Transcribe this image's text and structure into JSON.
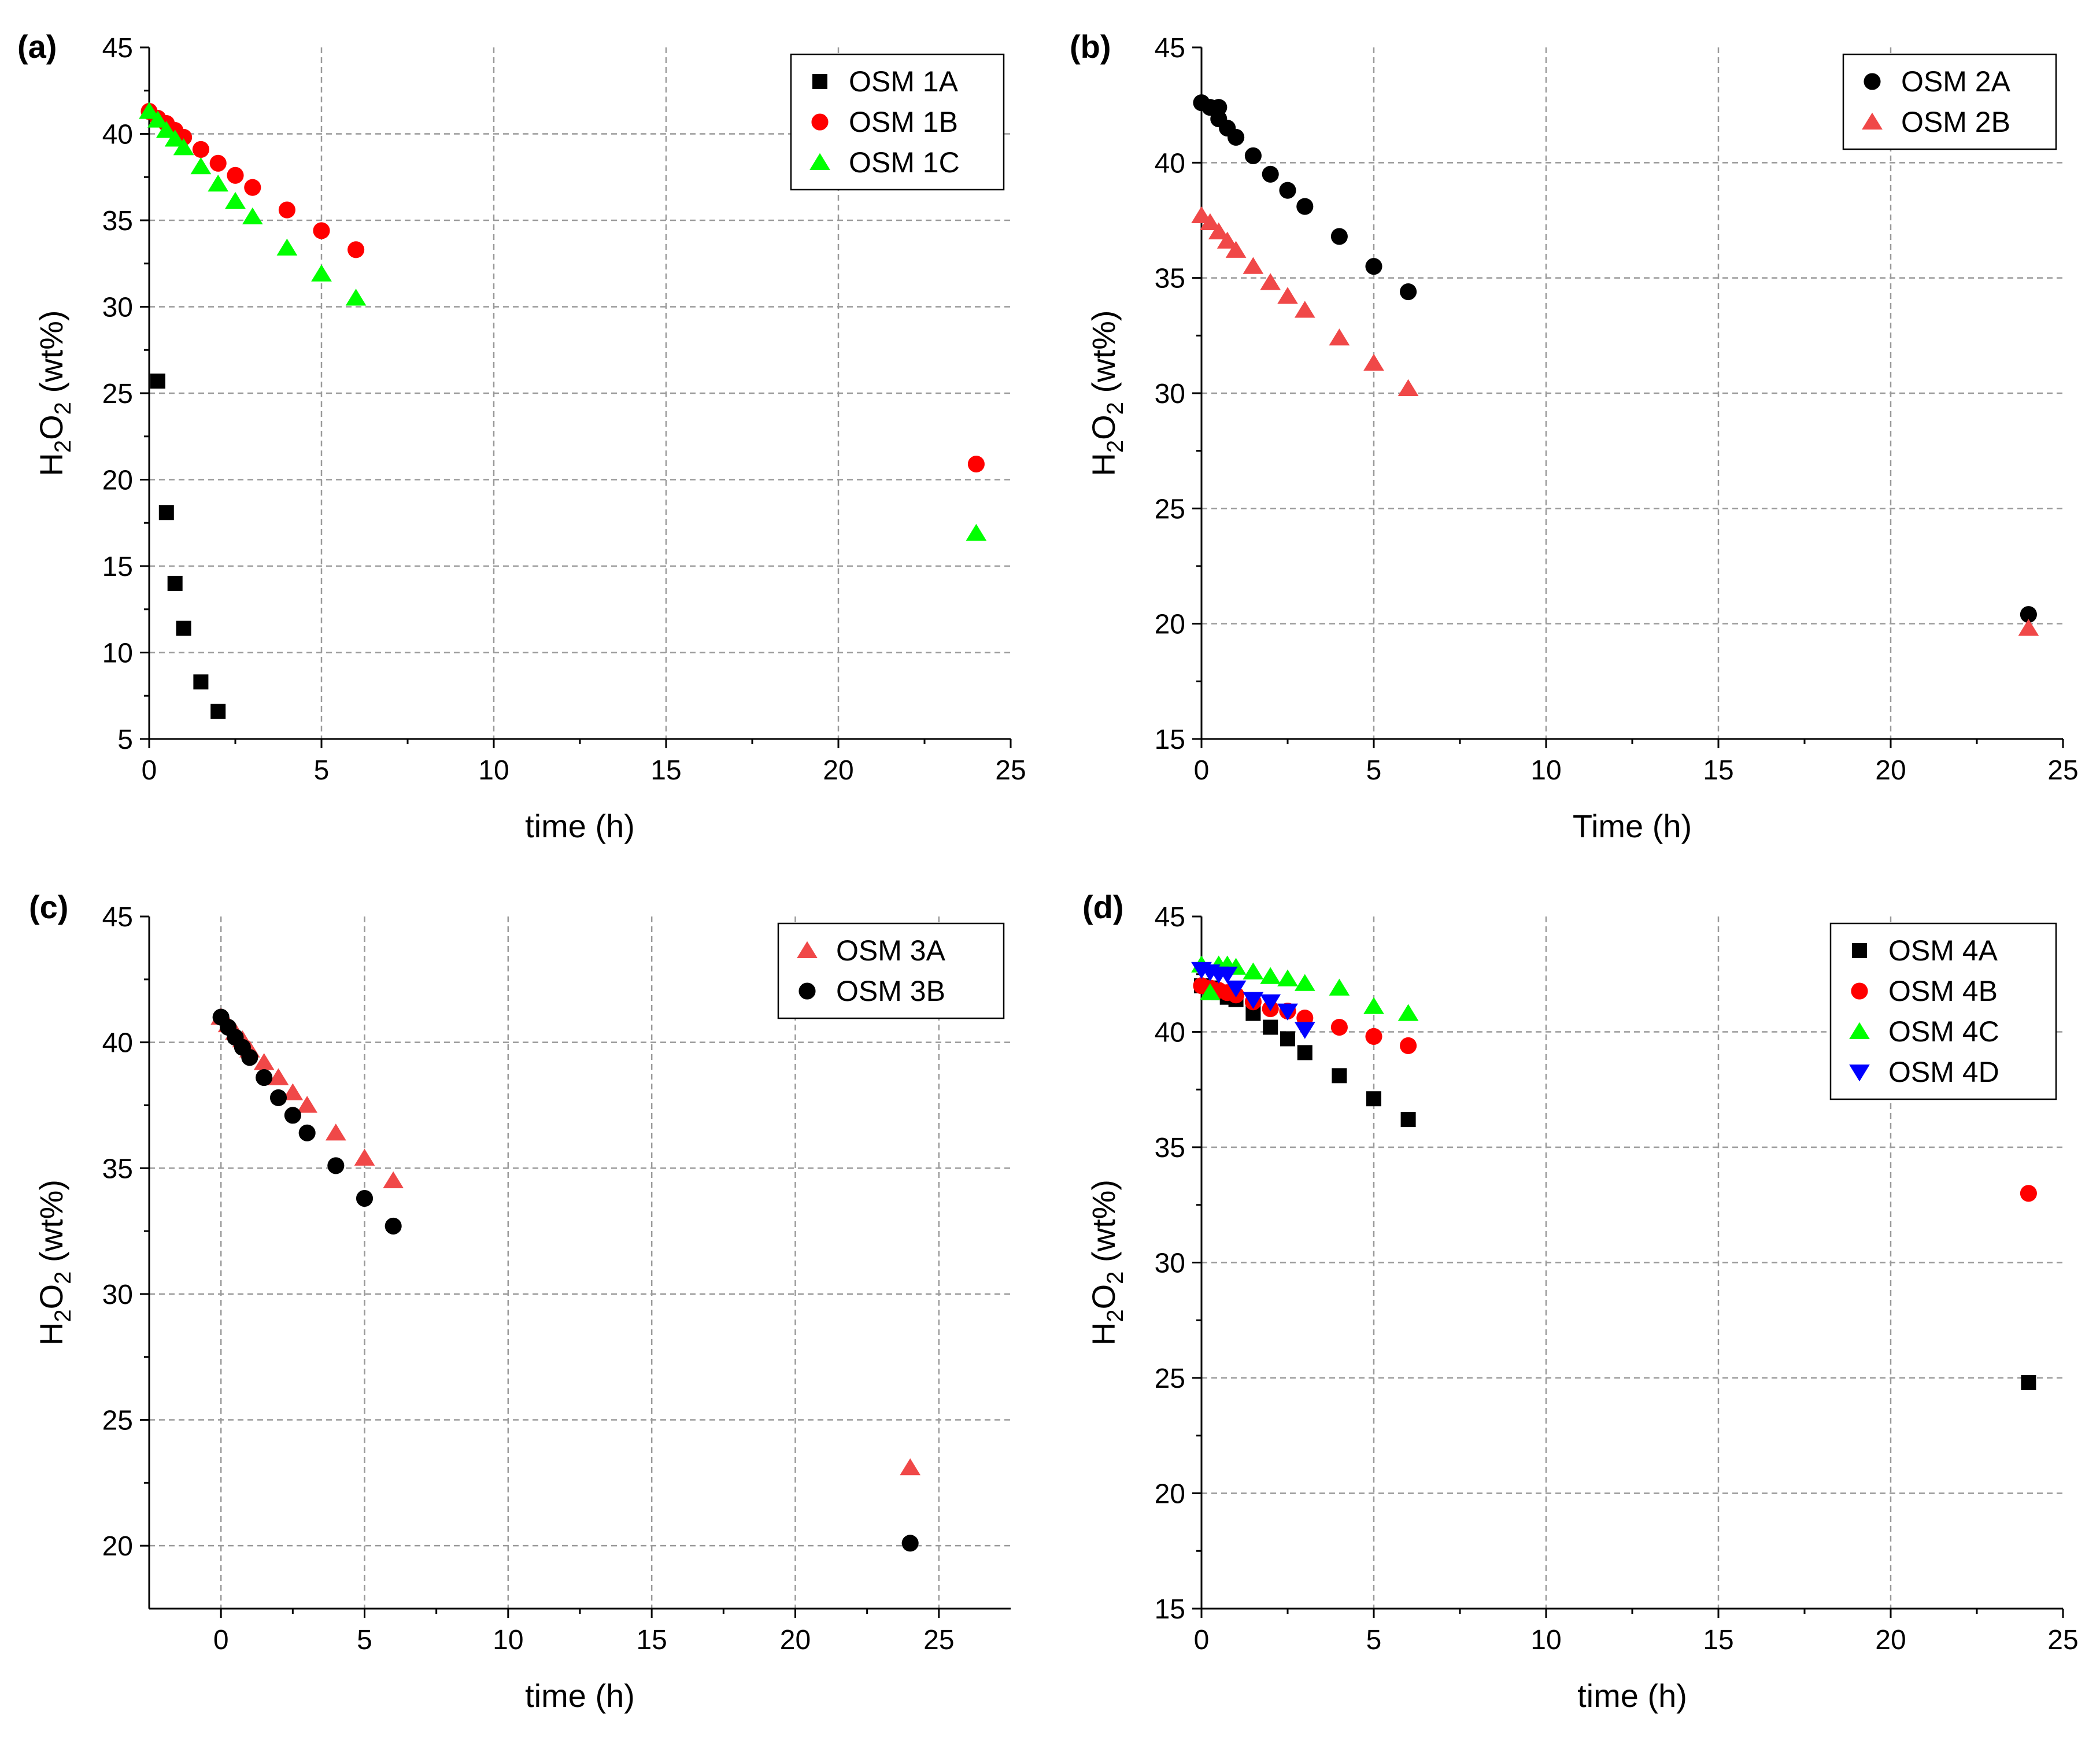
{
  "chart_data": [
    {
      "panel": "(a)",
      "type": "scatter",
      "xlabel": "time (h)",
      "ylabel_parts": [
        "H",
        "2",
        "O",
        "2",
        " (wt%)"
      ],
      "xlim": [
        0,
        25
      ],
      "ylim": [
        5,
        45
      ],
      "xticks": [
        0,
        5,
        10,
        15,
        20,
        25
      ],
      "yticks": [
        5,
        10,
        15,
        20,
        25,
        30,
        35,
        40,
        45
      ],
      "grid": true,
      "legend_position": "top-right",
      "series": [
        {
          "name": "OSM 1A",
          "marker": "square",
          "color": "#000000",
          "x": [
            0.25,
            0.5,
            0.75,
            1,
            1.5,
            2
          ],
          "y": [
            25.7,
            18.1,
            14.0,
            11.4,
            8.3,
            6.6
          ]
        },
        {
          "name": "OSM 1B",
          "marker": "circle",
          "color": "#ff0000",
          "x": [
            0,
            0.25,
            0.5,
            0.75,
            1,
            1.5,
            2,
            2.5,
            3,
            4,
            5,
            6,
            24
          ],
          "y": [
            41.3,
            40.9,
            40.6,
            40.2,
            39.8,
            39.1,
            38.3,
            37.6,
            36.9,
            35.6,
            34.4,
            33.3,
            20.9
          ]
        },
        {
          "name": "OSM 1C",
          "marker": "triangle-up",
          "color": "#00ff00",
          "x": [
            0,
            0.25,
            0.5,
            0.75,
            1,
            1.5,
            2,
            2.5,
            3,
            4,
            5,
            6,
            24
          ],
          "y": [
            41.3,
            40.8,
            40.2,
            39.7,
            39.2,
            38.1,
            37.1,
            36.1,
            35.2,
            33.4,
            31.9,
            30.5,
            16.9
          ]
        }
      ]
    },
    {
      "panel": "(b)",
      "type": "scatter",
      "xlabel": "Time (h)",
      "ylabel_parts": [
        "H",
        "2",
        "O",
        "2",
        " (wt%)"
      ],
      "xlim": [
        0,
        25
      ],
      "ylim": [
        15,
        45
      ],
      "xticks": [
        0,
        5,
        10,
        15,
        20,
        25
      ],
      "yticks": [
        15,
        20,
        25,
        30,
        35,
        40,
        45
      ],
      "grid": true,
      "legend_position": "top-right",
      "series": [
        {
          "name": "OSM 2A",
          "marker": "circle",
          "color": "#000000",
          "x": [
            0,
            0.25,
            0.5,
            0.5,
            0.75,
            1,
            1.5,
            2,
            2.5,
            3,
            4,
            5,
            6,
            24
          ],
          "y": [
            42.6,
            42.4,
            42.4,
            41.9,
            41.5,
            41.1,
            40.3,
            39.5,
            38.8,
            38.1,
            36.8,
            35.5,
            34.4,
            20.4
          ]
        },
        {
          "name": "OSM 2B",
          "marker": "triangle-up",
          "color": "#f04848",
          "x": [
            0,
            0.25,
            0.5,
            0.75,
            1,
            1.5,
            2,
            2.5,
            3,
            4,
            5,
            6,
            24
          ],
          "y": [
            37.7,
            37.4,
            37.0,
            36.6,
            36.2,
            35.5,
            34.8,
            34.2,
            33.6,
            32.4,
            31.3,
            30.2,
            19.8
          ]
        }
      ]
    },
    {
      "panel": "(c)",
      "type": "scatter",
      "xlabel": "time (h)",
      "ylabel_parts": [
        "H",
        "2",
        "O",
        "2",
        " (wt%)"
      ],
      "xlim": [
        -2.5,
        27.5
      ],
      "ylim": [
        17.5,
        45
      ],
      "xticks": [
        0,
        5,
        10,
        15,
        20,
        25
      ],
      "yticks": [
        20,
        25,
        30,
        35,
        40,
        45
      ],
      "grid": true,
      "legend_position": "top-right",
      "series": [
        {
          "name": "OSM 3A",
          "marker": "triangle-up",
          "color": "#f04848",
          "x": [
            0,
            0.25,
            0.5,
            0.75,
            1,
            1.5,
            2,
            2.5,
            3,
            4,
            5,
            6,
            24
          ],
          "y": [
            41.0,
            40.7,
            40.4,
            40.1,
            39.7,
            39.2,
            38.6,
            38.0,
            37.5,
            36.4,
            35.4,
            34.5,
            23.1
          ]
        },
        {
          "name": "OSM 3B",
          "marker": "circle",
          "color": "#000000",
          "x": [
            0,
            0.25,
            0.5,
            0.75,
            1,
            1.5,
            2,
            2.5,
            3,
            4,
            5,
            6,
            24
          ],
          "y": [
            41.0,
            40.6,
            40.2,
            39.8,
            39.4,
            38.6,
            37.8,
            37.1,
            36.4,
            35.1,
            33.8,
            32.7,
            20.1
          ]
        }
      ]
    },
    {
      "panel": "(d)",
      "type": "scatter",
      "xlabel": "time (h)",
      "ylabel_parts": [
        "H",
        "2",
        "O",
        "2",
        " (wt%)"
      ],
      "xlim": [
        0,
        25
      ],
      "ylim": [
        15,
        45
      ],
      "xticks": [
        0,
        5,
        10,
        15,
        20,
        25
      ],
      "yticks": [
        15,
        20,
        25,
        30,
        35,
        40,
        45
      ],
      "grid": true,
      "legend_position": "top-right",
      "series": [
        {
          "name": "OSM 4A",
          "marker": "square",
          "color": "#000000",
          "x": [
            0,
            0.25,
            0.5,
            0.75,
            1,
            1.5,
            2,
            2.5,
            3,
            4,
            5,
            6,
            24
          ],
          "y": [
            42.0,
            41.9,
            41.7,
            41.5,
            41.4,
            40.8,
            40.2,
            39.7,
            39.1,
            38.1,
            37.1,
            36.2,
            24.8
          ]
        },
        {
          "name": "OSM 4B",
          "marker": "circle",
          "color": "#ff0000",
          "x": [
            0,
            0.25,
            0.5,
            0.75,
            1,
            1.5,
            2,
            2.5,
            3,
            4,
            5,
            6,
            24
          ],
          "y": [
            42.0,
            41.9,
            41.8,
            41.7,
            41.6,
            41.3,
            41.0,
            40.9,
            40.6,
            40.2,
            39.8,
            39.4,
            33.0
          ]
        },
        {
          "name": "OSM 4C",
          "marker": "triangle-up",
          "color": "#00ff00",
          "x": [
            0,
            0.25,
            0.5,
            0.75,
            1,
            1.5,
            2,
            2.5,
            3,
            4,
            5,
            6
          ],
          "y": [
            42.9,
            41.7,
            42.9,
            42.9,
            42.8,
            42.6,
            42.4,
            42.3,
            42.1,
            41.9,
            41.1,
            40.8
          ]
        },
        {
          "name": "OSM 4D",
          "marker": "triangle-down",
          "color": "#0000ff",
          "x": [
            0,
            0.25,
            0.5,
            0.75,
            1,
            1.5,
            2,
            2.5,
            3
          ],
          "y": [
            42.7,
            42.6,
            42.5,
            42.5,
            41.9,
            41.4,
            41.3,
            40.9,
            40.1
          ]
        }
      ]
    }
  ]
}
